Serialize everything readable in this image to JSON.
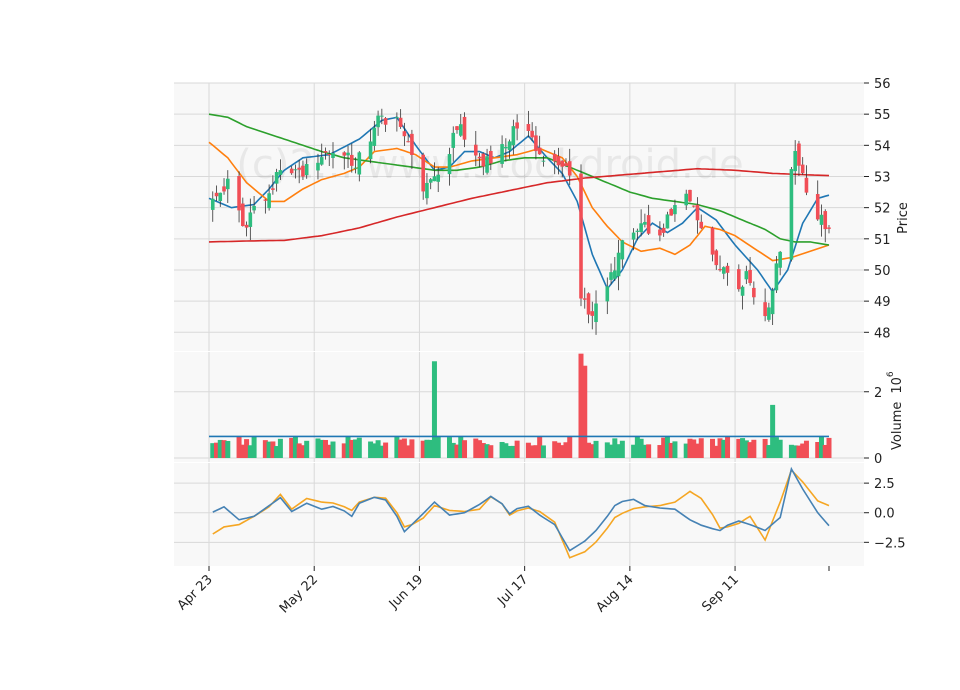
{
  "watermark": "(c)2... www.stockdroid.de",
  "colors": {
    "up": "#2ebd7f",
    "down": "#f14e56",
    "ma_blue": "#1f77b4",
    "ma_orange": "#ff7f0e",
    "ma_green": "#2ca02c",
    "ma_red": "#d62728",
    "osc_blue": "#4682b4",
    "osc_orange": "#f5a623",
    "panel_bg": "#f8f8f8",
    "grid": "#d9d9d9"
  },
  "chart_data": [
    {
      "type": "candlestick",
      "panel": "price",
      "ylabel": "Price",
      "ylim": [
        47.4,
        56
      ],
      "yticks": [
        48,
        49,
        50,
        51,
        52,
        53,
        54,
        55,
        56
      ],
      "x_tick_labels": [
        "Apr 23",
        "May 22",
        "Jun 19",
        "Jul 17",
        "Aug 14",
        "Sep 11"
      ],
      "start_date": "2023-04-23",
      "x_tick_days": [
        0,
        28,
        56,
        84,
        112,
        140
      ],
      "close_anchors": [
        [
          0,
          52.0
        ],
        [
          3,
          52.5
        ],
        [
          6,
          52.9
        ],
        [
          9,
          51.4
        ],
        [
          12,
          52.0
        ],
        [
          15,
          52.3
        ],
        [
          18,
          52.9
        ],
        [
          21,
          53.5
        ],
        [
          24,
          53.0
        ],
        [
          27,
          53.4
        ],
        [
          30,
          53.7
        ],
        [
          33,
          53.8
        ],
        [
          36,
          53.6
        ],
        [
          39,
          53.4
        ],
        [
          42,
          54.1
        ],
        [
          45,
          54.8
        ],
        [
          48,
          54.9
        ],
        [
          51,
          54.6
        ],
        [
          54,
          53.9
        ],
        [
          57,
          52.6
        ],
        [
          60,
          53.0
        ],
        [
          63,
          53.5
        ],
        [
          66,
          54.7
        ],
        [
          69,
          53.9
        ],
        [
          72,
          53.6
        ],
        [
          75,
          53.5
        ],
        [
          78,
          53.8
        ],
        [
          81,
          54.6
        ],
        [
          84,
          54.6
        ],
        [
          87,
          54.0
        ],
        [
          90,
          53.2
        ],
        [
          93,
          53.3
        ],
        [
          96,
          53.1
        ],
        [
          99,
          49.2
        ],
        [
          102,
          48.6
        ],
        [
          105,
          49.0
        ],
        [
          108,
          50.2
        ],
        [
          111,
          51.0
        ],
        [
          114,
          51.2
        ],
        [
          117,
          51.4
        ],
        [
          120,
          51.2
        ],
        [
          123,
          51.7
        ],
        [
          126,
          52.5
        ],
        [
          129,
          52.2
        ],
        [
          132,
          51.0
        ],
        [
          135,
          50.4
        ],
        [
          138,
          49.9
        ],
        [
          141,
          49.6
        ],
        [
          144,
          49.8
        ],
        [
          147,
          48.2
        ],
        [
          150,
          49.4
        ],
        [
          153,
          51.2
        ],
        [
          156,
          53.9
        ],
        [
          159,
          52.7
        ],
        [
          162,
          51.8
        ],
        [
          165,
          51.3
        ]
      ],
      "volume_spike_days": [
        13,
        35,
        60,
        90,
        98,
        99,
        100,
        150
      ],
      "ma_lines": [
        {
          "color_key": "ma_blue",
          "anchors": [
            [
              0,
              52.3
            ],
            [
              6,
              52.0
            ],
            [
              12,
              52.1
            ],
            [
              16,
              52.6
            ],
            [
              20,
              53.2
            ],
            [
              25,
              53.6
            ],
            [
              32,
              53.7
            ],
            [
              40,
              54.2
            ],
            [
              46,
              54.8
            ],
            [
              50,
              54.9
            ],
            [
              55,
              54.0
            ],
            [
              60,
              53.2
            ],
            [
              64,
              53.3
            ],
            [
              68,
              53.8
            ],
            [
              72,
              53.8
            ],
            [
              76,
              53.6
            ],
            [
              80,
              53.8
            ],
            [
              85,
              54.3
            ],
            [
              90,
              53.6
            ],
            [
              94,
              53.1
            ],
            [
              98,
              52.2
            ],
            [
              102,
              50.5
            ],
            [
              106,
              49.4
            ],
            [
              110,
              50.0
            ],
            [
              114,
              51.0
            ],
            [
              118,
              51.5
            ],
            [
              122,
              51.2
            ],
            [
              126,
              51.5
            ],
            [
              130,
              52.0
            ],
            [
              135,
              51.6
            ],
            [
              140,
              50.8
            ],
            [
              146,
              50.0
            ],
            [
              150,
              49.3
            ],
            [
              154,
              50.0
            ],
            [
              158,
              51.5
            ],
            [
              162,
              52.3
            ],
            [
              165,
              52.4
            ]
          ]
        },
        {
          "color_key": "ma_orange",
          "anchors": [
            [
              0,
              54.1
            ],
            [
              5,
              53.6
            ],
            [
              10,
              52.8
            ],
            [
              16,
              52.2
            ],
            [
              20,
              52.2
            ],
            [
              25,
              52.6
            ],
            [
              30,
              52.9
            ],
            [
              36,
              53.1
            ],
            [
              40,
              53.3
            ],
            [
              44,
              53.8
            ],
            [
              50,
              53.9
            ],
            [
              55,
              53.7
            ],
            [
              60,
              53.3
            ],
            [
              64,
              53.3
            ],
            [
              70,
              53.5
            ],
            [
              76,
              53.6
            ],
            [
              82,
              53.7
            ],
            [
              88,
              53.9
            ],
            [
              94,
              53.6
            ],
            [
              98,
              53.0
            ],
            [
              102,
              52.0
            ],
            [
              106,
              51.4
            ],
            [
              110,
              50.9
            ],
            [
              115,
              50.6
            ],
            [
              120,
              50.7
            ],
            [
              124,
              50.5
            ],
            [
              128,
              50.8
            ],
            [
              132,
              51.4
            ],
            [
              136,
              51.3
            ],
            [
              140,
              51.1
            ],
            [
              145,
              50.7
            ],
            [
              150,
              50.3
            ],
            [
              155,
              50.4
            ],
            [
              160,
              50.6
            ],
            [
              165,
              50.8
            ]
          ]
        },
        {
          "color_key": "ma_green",
          "anchors": [
            [
              0,
              55.0
            ],
            [
              5,
              54.9
            ],
            [
              10,
              54.6
            ],
            [
              15,
              54.4
            ],
            [
              20,
              54.2
            ],
            [
              25,
              54.0
            ],
            [
              30,
              53.8
            ],
            [
              36,
              53.6
            ],
            [
              42,
              53.5
            ],
            [
              48,
              53.4
            ],
            [
              54,
              53.3
            ],
            [
              60,
              53.2
            ],
            [
              66,
              53.2
            ],
            [
              72,
              53.3
            ],
            [
              78,
              53.5
            ],
            [
              84,
              53.6
            ],
            [
              90,
              53.6
            ],
            [
              96,
              53.3
            ],
            [
              100,
              53.1
            ],
            [
              106,
              52.8
            ],
            [
              112,
              52.5
            ],
            [
              118,
              52.3
            ],
            [
              124,
              52.2
            ],
            [
              130,
              52.1
            ],
            [
              136,
              51.9
            ],
            [
              142,
              51.6
            ],
            [
              148,
              51.3
            ],
            [
              152,
              51.0
            ],
            [
              156,
              50.9
            ],
            [
              160,
              50.9
            ],
            [
              165,
              50.8
            ]
          ]
        },
        {
          "color_key": "ma_red",
          "anchors": [
            [
              0,
              50.9
            ],
            [
              10,
              50.93
            ],
            [
              20,
              50.95
            ],
            [
              30,
              51.1
            ],
            [
              40,
              51.35
            ],
            [
              50,
              51.7
            ],
            [
              60,
              52.0
            ],
            [
              70,
              52.3
            ],
            [
              80,
              52.55
            ],
            [
              90,
              52.8
            ],
            [
              100,
              52.95
            ],
            [
              110,
              53.05
            ],
            [
              120,
              53.15
            ],
            [
              130,
              53.25
            ],
            [
              140,
              53.2
            ],
            [
              150,
              53.1
            ],
            [
              160,
              53.05
            ],
            [
              165,
              53.03
            ]
          ]
        }
      ]
    },
    {
      "type": "bar",
      "panel": "volume",
      "ylabel": "Volume",
      "exponent_label": "10",
      "exponent_power": "6",
      "ylim": [
        0,
        3.2
      ],
      "yticks": [
        0,
        2
      ],
      "base_volume": 0.6,
      "avg_line": 0.65
    },
    {
      "type": "line",
      "panel": "oscillator",
      "ylim": [
        -4.5,
        4.2
      ],
      "yticks": [
        -2.5,
        0.0,
        2.5
      ],
      "ytick_labels": [
        "−2.5",
        "0.0",
        "2.5"
      ],
      "series": [
        {
          "color_key": "osc_blue",
          "anchors": [
            [
              0,
              -0.1
            ],
            [
              4,
              0.5
            ],
            [
              8,
              -0.6
            ],
            [
              12,
              -0.3
            ],
            [
              16,
              0.6
            ],
            [
              20,
              1.5
            ],
            [
              22,
              0.1
            ],
            [
              26,
              0.8
            ],
            [
              30,
              0.3
            ],
            [
              34,
              0.6
            ],
            [
              38,
              -0.3
            ],
            [
              40,
              0.8
            ],
            [
              44,
              1.3
            ],
            [
              48,
              1.0
            ],
            [
              52,
              -1.6
            ],
            [
              56,
              -0.4
            ],
            [
              60,
              0.9
            ],
            [
              64,
              -0.2
            ],
            [
              68,
              0.0
            ],
            [
              72,
              0.7
            ],
            [
              76,
              1.6
            ],
            [
              80,
              -0.1
            ],
            [
              84,
              0.8
            ],
            [
              88,
              -0.2
            ],
            [
              92,
              -1.0
            ],
            [
              96,
              -3.2
            ],
            [
              100,
              -2.4
            ],
            [
              104,
              -1.2
            ],
            [
              108,
              0.6
            ],
            [
              112,
              1.3
            ],
            [
              116,
              0.6
            ],
            [
              120,
              0.4
            ],
            [
              124,
              0.3
            ],
            [
              128,
              -0.6
            ],
            [
              132,
              -1.2
            ],
            [
              136,
              -1.5
            ],
            [
              140,
              -0.6
            ],
            [
              144,
              -1.0
            ],
            [
              148,
              -1.5
            ],
            [
              152,
              -0.4
            ],
            [
              155,
              3.7
            ],
            [
              158,
              2.0
            ],
            [
              162,
              0.0
            ],
            [
              165,
              -1.1
            ]
          ]
        },
        {
          "color_key": "osc_orange",
          "anchors": [
            [
              0,
              -2.0
            ],
            [
              4,
              -1.2
            ],
            [
              8,
              -1.0
            ],
            [
              12,
              -0.3
            ],
            [
              16,
              0.5
            ],
            [
              20,
              1.9
            ],
            [
              22,
              0.3
            ],
            [
              26,
              1.2
            ],
            [
              30,
              0.9
            ],
            [
              34,
              0.8
            ],
            [
              38,
              0.2
            ],
            [
              40,
              0.9
            ],
            [
              44,
              1.3
            ],
            [
              48,
              1.2
            ],
            [
              52,
              -1.2
            ],
            [
              56,
              -0.8
            ],
            [
              60,
              0.6
            ],
            [
              64,
              0.2
            ],
            [
              68,
              0.1
            ],
            [
              72,
              0.3
            ],
            [
              76,
              1.7
            ],
            [
              80,
              -0.2
            ],
            [
              84,
              0.5
            ],
            [
              88,
              0.1
            ],
            [
              92,
              -0.8
            ],
            [
              96,
              -3.8
            ],
            [
              100,
              -3.3
            ],
            [
              104,
              -2.2
            ],
            [
              108,
              -0.4
            ],
            [
              112,
              0.3
            ],
            [
              116,
              0.5
            ],
            [
              120,
              0.6
            ],
            [
              124,
              0.9
            ],
            [
              128,
              1.8
            ],
            [
              132,
              1.0
            ],
            [
              136,
              -1.3
            ],
            [
              140,
              -1.1
            ],
            [
              144,
              -0.3
            ],
            [
              148,
              -2.3
            ],
            [
              152,
              0.9
            ],
            [
              155,
              3.6
            ],
            [
              158,
              2.6
            ],
            [
              162,
              1.0
            ],
            [
              165,
              0.6
            ]
          ]
        }
      ]
    }
  ]
}
